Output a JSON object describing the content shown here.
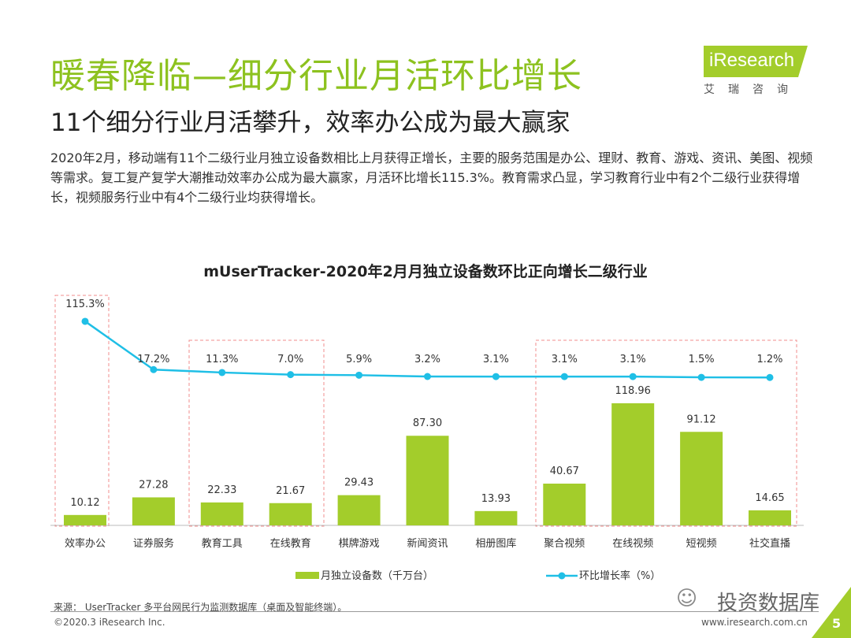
{
  "header": {
    "title": "暖春降临—细分行业月活环比增长",
    "subtitle": "11个细分行业月活攀升，效率办公成为最大赢家",
    "description": "2020年2月，移动端有11个二级行业月独立设备数相比上月获得正增长，主要的服务范围是办公、理财、教育、游戏、资讯、美图、视频等需求。复工复产复学大潮推动效率办公成为最大赢家，月活环比增长115.3%。教育需求凸显，学习教育行业中有2个二级行业获得增长，视频服务行业中有4个二级行业均获得增长。"
  },
  "logo": {
    "name": "iResearch",
    "sub": "艾瑞咨询"
  },
  "chart_data": {
    "type": "bar+line",
    "title": "mUserTracker-2020年2月月独立设备数环比正向增长二级行业",
    "categories": [
      "效率办公",
      "证券服务",
      "教育工具",
      "在线教育",
      "棋牌游戏",
      "新闻资讯",
      "相册图库",
      "聚合视频",
      "在线视频",
      "短视频",
      "社交直播"
    ],
    "series": [
      {
        "name": "月独立设备数（千万台）",
        "type": "bar",
        "color": "#a3cd2b",
        "values": [
          10.12,
          27.28,
          22.33,
          21.67,
          29.43,
          87.3,
          13.93,
          40.67,
          118.96,
          91.12,
          14.65
        ],
        "labels": [
          "10.12",
          "27.28",
          "22.33",
          "21.67",
          "29.43",
          "87.30",
          "13.93",
          "40.67",
          "118.96",
          "91.12",
          "14.65"
        ]
      },
      {
        "name": "环比增长率（%）",
        "type": "line",
        "color": "#1fbfe6",
        "values": [
          115.3,
          17.2,
          11.3,
          7.0,
          5.9,
          3.2,
          3.1,
          3.1,
          3.1,
          1.5,
          1.2
        ],
        "labels": [
          "115.3%",
          "17.2%",
          "11.3%",
          "7.0%",
          "5.9%",
          "3.2%",
          "3.1%",
          "3.1%",
          "3.1%",
          "1.5%",
          "1.2%"
        ]
      }
    ],
    "highlight_groups": [
      [
        "效率办公"
      ],
      [
        "教育工具",
        "在线教育"
      ],
      [
        "聚合视频",
        "在线视频",
        "短视频",
        "社交直播"
      ]
    ],
    "legend": "bottom",
    "grid": false
  },
  "footer": {
    "source": "来源： UserTracker 多平台网民行为监测数据库（桌面及智能终端）。",
    "copyright": "©2020.3 iResearch Inc.",
    "url": "www.iresearch.com.cn",
    "page": "5",
    "watermark": "投资数据库"
  }
}
